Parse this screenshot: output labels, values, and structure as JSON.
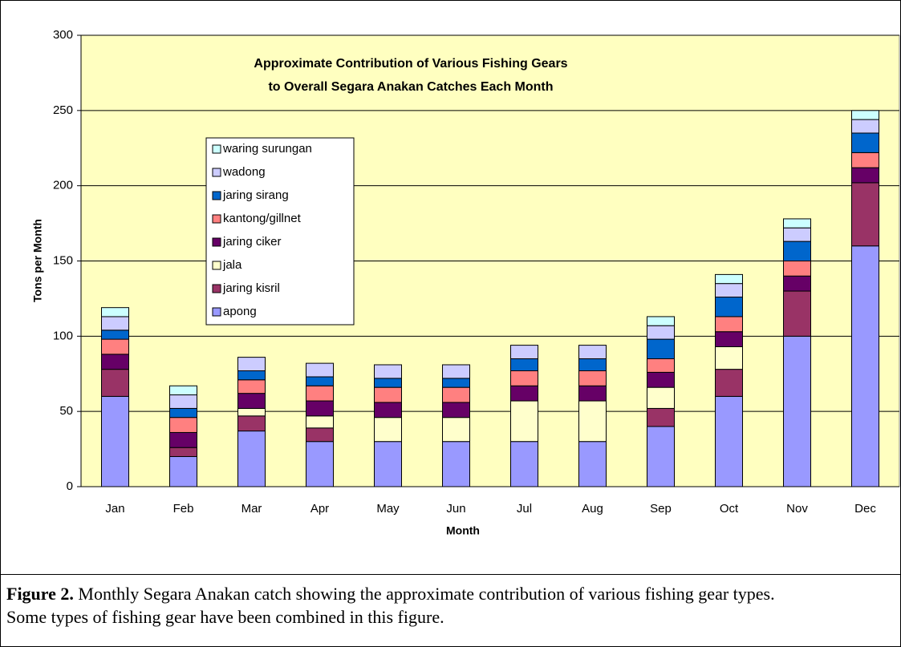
{
  "chart_data": {
    "type": "bar",
    "stacked": true,
    "title_lines": [
      "Approximate Contribution of Various Fishing Gears",
      "to Overall Segara Anakan Catches Each Month"
    ],
    "y_label": "Tons per Month",
    "x_label": "Month",
    "categories": [
      "Jan",
      "Feb",
      "Mar",
      "Apr",
      "May",
      "Jun",
      "Jul",
      "Aug",
      "Sep",
      "Oct",
      "Nov",
      "Dec"
    ],
    "series": [
      {
        "name": "apong",
        "color": "#9999ff",
        "values": [
          60,
          20,
          37,
          30,
          30,
          30,
          30,
          30,
          40,
          60,
          100,
          160
        ]
      },
      {
        "name": "jaring kisril",
        "color": "#993366",
        "values": [
          18,
          6,
          10,
          9,
          0,
          0,
          0,
          0,
          12,
          18,
          30,
          42
        ]
      },
      {
        "name": "jala",
        "color": "#ffffcc",
        "values": [
          0,
          0,
          5,
          8,
          16,
          16,
          27,
          27,
          14,
          15,
          0,
          0
        ]
      },
      {
        "name": "jaring ciker",
        "color": "#660066",
        "values": [
          10,
          10,
          10,
          10,
          10,
          10,
          10,
          10,
          10,
          10,
          10,
          10
        ]
      },
      {
        "name": "kantong/gillnet",
        "color": "#ff8080",
        "values": [
          10,
          10,
          9,
          10,
          10,
          10,
          10,
          10,
          9,
          10,
          10,
          10
        ]
      },
      {
        "name": "jaring sirang",
        "color": "#0066cc",
        "values": [
          6,
          6,
          6,
          6,
          6,
          6,
          8,
          8,
          13,
          13,
          13,
          13
        ]
      },
      {
        "name": "wadong",
        "color": "#ccccff",
        "values": [
          9,
          9,
          9,
          9,
          9,
          9,
          9,
          9,
          9,
          9,
          9,
          9
        ]
      },
      {
        "name": "waring surungan",
        "color": "#ccffff",
        "values": [
          6,
          6,
          0,
          0,
          0,
          0,
          0,
          0,
          6,
          6,
          6,
          6
        ]
      }
    ],
    "ylim": [
      0,
      300
    ],
    "yticks": [
      0,
      50,
      100,
      150,
      200,
      250,
      300
    ],
    "grid": true,
    "legend": "upper left"
  },
  "caption": {
    "label": "Figure 2.",
    "text": " Monthly Segara Anakan catch showing the approximate contribution of various fishing gear types.  Some types of fishing gear have been combined in this figure."
  }
}
